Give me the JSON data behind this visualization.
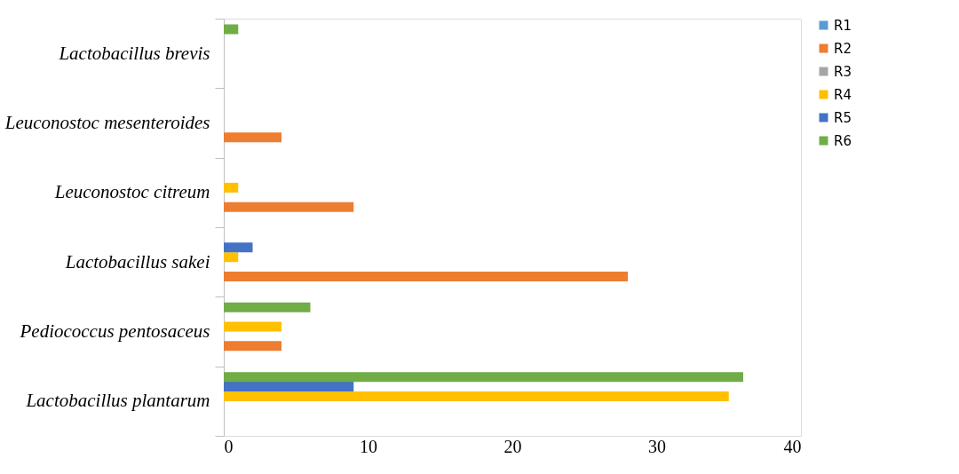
{
  "chart_data": {
    "type": "bar",
    "orientation": "horizontal",
    "categories": [
      "Lactobacillus brevis",
      "Leuconostoc mesenteroides",
      "Leuconostoc citreum",
      "Lactobacillus sakei",
      "Pediococcus pentosaceus",
      "Lactobacillus plantarum"
    ],
    "series": [
      {
        "name": "R1",
        "color": "#5b9bd5",
        "values": [
          0,
          0,
          0,
          0,
          0,
          0
        ]
      },
      {
        "name": "R2",
        "color": "#ed7d31",
        "values": [
          0,
          4,
          9,
          28,
          4,
          0
        ]
      },
      {
        "name": "R3",
        "color": "#a5a5a5",
        "values": [
          0,
          0,
          0,
          0,
          0,
          0
        ]
      },
      {
        "name": "R4",
        "color": "#ffc000",
        "values": [
          0,
          0,
          1,
          1,
          4,
          35
        ]
      },
      {
        "name": "R5",
        "color": "#4472c4",
        "values": [
          0,
          0,
          0,
          2,
          0,
          9
        ]
      },
      {
        "name": "R6",
        "color": "#70ad47",
        "values": [
          1,
          0,
          0,
          0,
          6,
          36
        ]
      }
    ],
    "xlim": [
      0,
      40
    ],
    "xticks": [
      0,
      10,
      20,
      30,
      40
    ],
    "grid": false,
    "legend": "right"
  }
}
